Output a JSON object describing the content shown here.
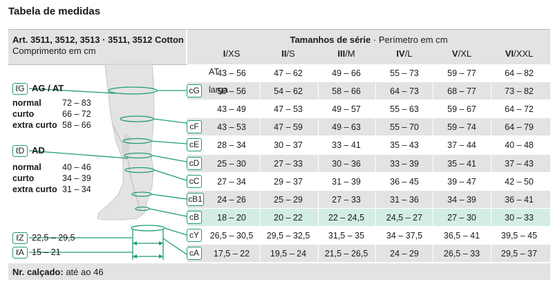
{
  "title": "Tabela de medidas",
  "header": {
    "articles": "Art. 3511, 3512, 3513 · 3511, 3512 Cotton",
    "length_label": "Comprimento em cm",
    "sizes_title": "Tamanhos de série",
    "sizes_subtitle": "· Perímetro em cm",
    "sizes": [
      {
        "roman": "I",
        "code": "/XS"
      },
      {
        "roman": "II",
        "code": "/S"
      },
      {
        "roman": "III",
        "code": "/M"
      },
      {
        "roman": "IV",
        "code": "/L"
      },
      {
        "roman": "V",
        "code": "/XL"
      },
      {
        "roman": "VI",
        "code": "/XXL"
      }
    ]
  },
  "lengths": {
    "ag": {
      "tag": "ℓG",
      "title": "AG / AT",
      "rows": [
        {
          "label": "normal",
          "value": "72 – 83"
        },
        {
          "label": "curto",
          "value": "66 – 72"
        },
        {
          "label": "extra curto",
          "value": "58 – 66"
        }
      ]
    },
    "ad": {
      "tag": "ℓD",
      "title": "AD",
      "rows": [
        {
          "label": "normal",
          "value": "40 – 46"
        },
        {
          "label": "curto",
          "value": "34 – 39"
        },
        {
          "label": "extra curto",
          "value": "31 – 34"
        }
      ]
    },
    "z": {
      "tag": "ℓZ",
      "value": "22,5 – 29,5"
    },
    "a": {
      "tag": "ℓA",
      "value": "15 – 21"
    }
  },
  "table": {
    "rows": [
      {
        "tag": "",
        "sub": "AT",
        "values": [
          "43 – 56",
          "47 – 62",
          "49 – 66",
          "55 – 73",
          "59 – 77",
          "64 – 82"
        ],
        "shade": "white"
      },
      {
        "tag": "cG",
        "sub": "larga",
        "values": [
          "50 – 56",
          "54 – 62",
          "58 – 66",
          "64 – 73",
          "68 – 77",
          "73 – 82"
        ],
        "shade": "grey"
      },
      {
        "tag": "",
        "sub": "",
        "values": [
          "43 – 49",
          "47 – 53",
          "49 – 57",
          "55 – 63",
          "59 – 67",
          "64 – 72"
        ],
        "shade": "white"
      },
      {
        "tag": "cF",
        "sub": "",
        "values": [
          "43 – 53",
          "47 – 59",
          "49 – 63",
          "55 – 70",
          "59 – 74",
          "64 – 79"
        ],
        "shade": "grey"
      },
      {
        "tag": "cE",
        "sub": "",
        "values": [
          "28 – 34",
          "30 – 37",
          "33 – 41",
          "35 – 43",
          "37 – 44",
          "40 – 48"
        ],
        "shade": "white"
      },
      {
        "tag": "cD",
        "sub": "",
        "values": [
          "25 – 30",
          "27 – 33",
          "30 – 36",
          "33 – 39",
          "35 – 41",
          "37 – 43"
        ],
        "shade": "grey"
      },
      {
        "tag": "cC",
        "sub": "",
        "values": [
          "27 – 34",
          "29 – 37",
          "31 – 39",
          "36 – 45",
          "39 – 47",
          "42 – 50"
        ],
        "shade": "white"
      },
      {
        "tag": "cB1",
        "sub": "",
        "values": [
          "24 – 26",
          "25 – 29",
          "27 – 33",
          "31 – 36",
          "34 – 39",
          "36 – 41"
        ],
        "shade": "grey"
      },
      {
        "tag": "cB",
        "sub": "",
        "values": [
          "18 – 20",
          "20 – 22",
          "22 – 24,5",
          "24,5 – 27",
          "27 – 30",
          "30 – 33"
        ],
        "shade": "green"
      },
      {
        "tag": "cY",
        "sub": "",
        "values": [
          "26,5 – 30,5",
          "29,5 – 32,5",
          "31,5 – 35",
          "34 – 37,5",
          "36,5 – 41",
          "39,5 – 45"
        ],
        "shade": "white"
      },
      {
        "tag": "cA",
        "sub": "",
        "values": [
          "17,5 – 22",
          "19,5 – 24",
          "21,5 – 26,5",
          "24 – 29",
          "26,5 – 33",
          "29,5 – 37"
        ],
        "shade": "grey"
      }
    ]
  },
  "footer": {
    "label": "Nr. calçado:",
    "value": "até ao 46"
  },
  "colors": {
    "accent": "#1e9c78",
    "grey": "#e3e3e3",
    "green": "#d3ede5"
  }
}
